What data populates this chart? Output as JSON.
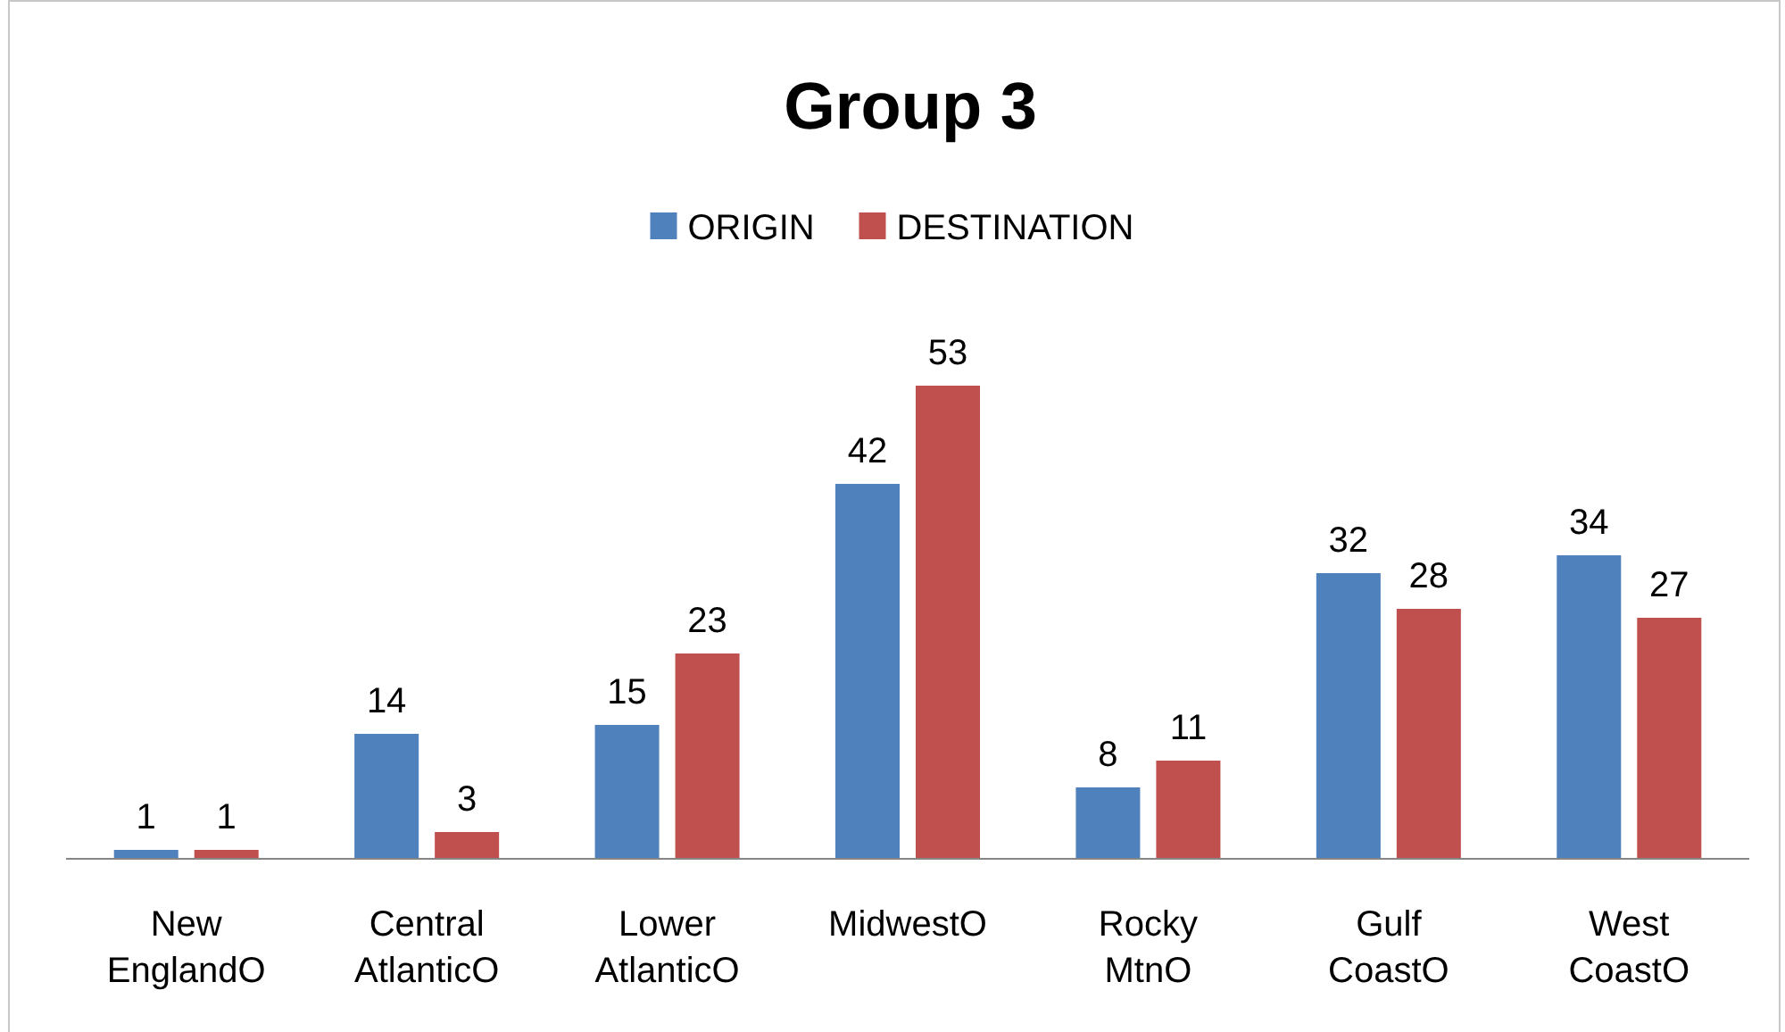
{
  "chart_data": {
    "type": "bar",
    "title": "Group 3",
    "categories": [
      "New EnglandO",
      "Central AtlanticO",
      "Lower AtlanticO",
      "MidwestO",
      "Rocky MtnO",
      "Gulf CoastO",
      "West CoastO"
    ],
    "series": [
      {
        "name": "ORIGIN",
        "color": "#4f81bd",
        "values": [
          1,
          14,
          15,
          42,
          8,
          32,
          34
        ]
      },
      {
        "name": "DESTINATION",
        "color": "#c0504d",
        "values": [
          1,
          3,
          23,
          53,
          11,
          28,
          27
        ]
      }
    ],
    "data_labels": true,
    "legend": "top"
  }
}
